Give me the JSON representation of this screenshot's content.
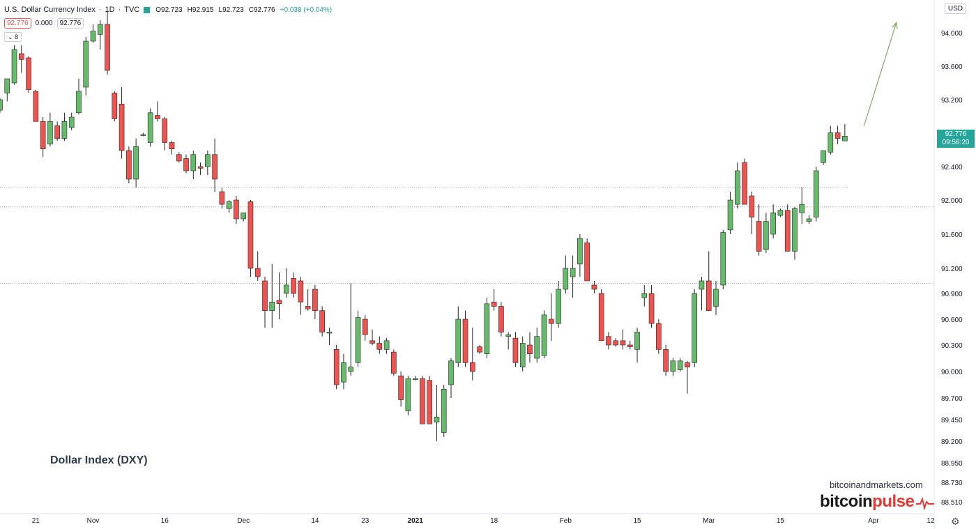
{
  "header": {
    "title": "U.S. Dollar Currency Index",
    "interval": "1D",
    "exchange": "TVC",
    "open": "O92.723",
    "high": "H92.915",
    "low": "L92.723",
    "close": "C92.776",
    "change": "+0.038 (+0.04%)"
  },
  "price_boxes": {
    "bid": "92.776",
    "spread": "0.000",
    "ask": "92.776"
  },
  "indicator_toggle": "8",
  "currency": "USD",
  "last_price": {
    "value": "92.776",
    "countdown": "09:56:20"
  },
  "annotation_label": "Dollar Index (DXY)",
  "watermark": {
    "site": "bitcoinandmarkets.com",
    "brand_part1": "bitcoin",
    "brand_part2": "pulse"
  },
  "colors": {
    "up": "#66bb6a",
    "down": "#ef5350",
    "arrow": "#7caa5e",
    "last_badge": "#26a69a"
  },
  "icons": [
    "settings-gear-icon",
    "pulse-wave-icon",
    "flag-icon"
  ],
  "chart_data": {
    "type": "candlestick",
    "y_ticks": [
      94.0,
      93.6,
      93.2,
      92.8,
      92.4,
      92.0,
      91.6,
      91.2,
      90.9,
      90.6,
      90.3,
      90.0,
      89.7,
      89.45,
      89.2,
      88.95,
      88.73,
      88.51
    ],
    "y_tick_labels": [
      "94.000",
      "93.600",
      "93.200",
      "92.800",
      "92.400",
      "92.000",
      "91.600",
      "91.200",
      "90.900",
      "90.600",
      "90.300",
      "90.000",
      "89.700",
      "89.450",
      "89.200",
      "88.950",
      "88.730",
      "88.510"
    ],
    "x_tick_labels": [
      {
        "label": "21",
        "index": 5
      },
      {
        "label": "Nov",
        "index": 13
      },
      {
        "label": "16",
        "index": 23
      },
      {
        "label": "Dec",
        "index": 34
      },
      {
        "label": "14",
        "index": 44
      },
      {
        "label": "23",
        "index": 51
      },
      {
        "label": "2021",
        "index": 58
      },
      {
        "label": "18",
        "index": 69
      },
      {
        "label": "Feb",
        "index": 79
      },
      {
        "label": "15",
        "index": 89
      },
      {
        "label": "Mar",
        "index": 99
      },
      {
        "label": "15",
        "index": 109
      },
      {
        "label": "Apr",
        "index": 122
      },
      {
        "label": "12",
        "index": 130
      }
    ],
    "horizontal_levels": [
      92.15,
      91.92,
      91.02
    ],
    "projection_arrow": {
      "from_index": 120,
      "from_value": 92.9,
      "to_index": 125,
      "to_value": 94.12
    },
    "candles": [
      {
        "o": 93.08,
        "h": 93.22,
        "l": 93.05,
        "c": 93.2
      },
      {
        "o": 93.28,
        "h": 93.4,
        "l": 93.18,
        "c": 93.45
      },
      {
        "o": 93.4,
        "h": 93.85,
        "l": 93.38,
        "c": 93.8
      },
      {
        "o": 93.75,
        "h": 93.85,
        "l": 93.52,
        "c": 93.68
      },
      {
        "o": 93.7,
        "h": 93.72,
        "l": 93.28,
        "c": 93.32
      },
      {
        "o": 93.3,
        "h": 93.32,
        "l": 92.95,
        "c": 92.95
      },
      {
        "o": 92.95,
        "h": 93.0,
        "l": 92.52,
        "c": 92.62
      },
      {
        "o": 92.68,
        "h": 93.05,
        "l": 92.65,
        "c": 92.95
      },
      {
        "o": 92.9,
        "h": 92.95,
        "l": 92.72,
        "c": 92.75
      },
      {
        "o": 92.75,
        "h": 93.05,
        "l": 92.72,
        "c": 92.95
      },
      {
        "o": 92.88,
        "h": 93.05,
        "l": 92.85,
        "c": 93.0
      },
      {
        "o": 93.05,
        "h": 93.45,
        "l": 93.03,
        "c": 93.3
      },
      {
        "o": 93.35,
        "h": 93.95,
        "l": 93.25,
        "c": 93.9
      },
      {
        "o": 93.9,
        "h": 94.1,
        "l": 93.88,
        "c": 94.02
      },
      {
        "o": 93.98,
        "h": 94.15,
        "l": 93.8,
        "c": 94.1
      },
      {
        "o": 94.1,
        "h": 94.25,
        "l": 93.5,
        "c": 93.55
      },
      {
        "o": 93.28,
        "h": 93.3,
        "l": 92.95,
        "c": 92.98
      },
      {
        "o": 93.15,
        "h": 93.35,
        "l": 92.5,
        "c": 92.6
      },
      {
        "o": 92.6,
        "h": 92.65,
        "l": 92.2,
        "c": 92.25
      },
      {
        "o": 92.25,
        "h": 92.75,
        "l": 92.15,
        "c": 92.65
      },
      {
        "o": 92.8,
        "h": 92.82,
        "l": 92.78,
        "c": 92.8
      },
      {
        "o": 92.7,
        "h": 93.1,
        "l": 92.65,
        "c": 93.05
      },
      {
        "o": 93.02,
        "h": 93.18,
        "l": 92.95,
        "c": 92.98
      },
      {
        "o": 92.98,
        "h": 93.0,
        "l": 92.6,
        "c": 92.7
      },
      {
        "o": 92.7,
        "h": 92.72,
        "l": 92.55,
        "c": 92.62
      },
      {
        "o": 92.55,
        "h": 92.58,
        "l": 92.45,
        "c": 92.47
      },
      {
        "o": 92.5,
        "h": 92.55,
        "l": 92.32,
        "c": 92.35
      },
      {
        "o": 92.35,
        "h": 92.6,
        "l": 92.25,
        "c": 92.55
      },
      {
        "o": 92.4,
        "h": 92.45,
        "l": 92.3,
        "c": 92.38
      },
      {
        "o": 92.4,
        "h": 92.6,
        "l": 92.3,
        "c": 92.55
      },
      {
        "o": 92.55,
        "h": 92.75,
        "l": 92.1,
        "c": 92.25
      },
      {
        "o": 92.1,
        "h": 92.15,
        "l": 91.9,
        "c": 91.95
      },
      {
        "o": 91.9,
        "h": 92.0,
        "l": 91.85,
        "c": 91.98
      },
      {
        "o": 92.0,
        "h": 92.05,
        "l": 91.72,
        "c": 91.78
      },
      {
        "o": 91.78,
        "h": 91.85,
        "l": 91.75,
        "c": 91.85
      },
      {
        "o": 91.98,
        "h": 92.0,
        "l": 91.1,
        "c": 91.2
      },
      {
        "o": 91.2,
        "h": 91.4,
        "l": 91.05,
        "c": 91.1
      },
      {
        "o": 91.05,
        "h": 91.1,
        "l": 90.5,
        "c": 90.7
      },
      {
        "o": 90.7,
        "h": 91.25,
        "l": 90.5,
        "c": 90.8
      },
      {
        "o": 90.82,
        "h": 91.15,
        "l": 90.6,
        "c": 90.78
      },
      {
        "o": 90.9,
        "h": 91.2,
        "l": 90.85,
        "c": 91.0
      },
      {
        "o": 91.08,
        "h": 91.15,
        "l": 90.85,
        "c": 90.9
      },
      {
        "o": 91.05,
        "h": 91.1,
        "l": 90.65,
        "c": 90.8
      },
      {
        "o": 90.75,
        "h": 90.95,
        "l": 90.7,
        "c": 90.72
      },
      {
        "o": 90.95,
        "h": 91.0,
        "l": 90.6,
        "c": 90.7
      },
      {
        "o": 90.7,
        "h": 90.75,
        "l": 90.4,
        "c": 90.45
      },
      {
        "o": 90.45,
        "h": 90.5,
        "l": 90.3,
        "c": 90.45
      },
      {
        "o": 90.25,
        "h": 90.3,
        "l": 89.8,
        "c": 89.85
      },
      {
        "o": 89.88,
        "h": 90.2,
        "l": 89.8,
        "c": 90.1
      },
      {
        "o": 90.0,
        "h": 91.02,
        "l": 89.95,
        "c": 90.05
      },
      {
        "o": 90.1,
        "h": 90.7,
        "l": 90.05,
        "c": 90.62
      },
      {
        "o": 90.6,
        "h": 90.65,
        "l": 90.35,
        "c": 90.42
      },
      {
        "o": 90.35,
        "h": 90.48,
        "l": 90.3,
        "c": 90.32
      },
      {
        "o": 90.32,
        "h": 90.4,
        "l": 90.2,
        "c": 90.25
      },
      {
        "o": 90.25,
        "h": 90.38,
        "l": 90.2,
        "c": 90.35
      },
      {
        "o": 90.22,
        "h": 90.25,
        "l": 89.95,
        "c": 89.98
      },
      {
        "o": 89.95,
        "h": 90.0,
        "l": 89.6,
        "c": 89.68
      },
      {
        "o": 89.55,
        "h": 89.95,
        "l": 89.5,
        "c": 89.92
      },
      {
        "o": 89.92,
        "h": 89.95,
        "l": 89.9,
        "c": 89.92
      },
      {
        "o": 89.92,
        "h": 89.95,
        "l": 89.4,
        "c": 89.4
      },
      {
        "o": 89.9,
        "h": 89.95,
        "l": 89.4,
        "c": 89.4
      },
      {
        "o": 89.42,
        "h": 89.85,
        "l": 89.2,
        "c": 89.48
      },
      {
        "o": 89.3,
        "h": 89.85,
        "l": 89.25,
        "c": 89.8
      },
      {
        "o": 89.85,
        "h": 90.15,
        "l": 89.7,
        "c": 90.12
      },
      {
        "o": 90.1,
        "h": 90.75,
        "l": 90.05,
        "c": 90.6
      },
      {
        "o": 90.6,
        "h": 90.7,
        "l": 90.05,
        "c": 90.1
      },
      {
        "o": 90.1,
        "h": 90.5,
        "l": 89.9,
        "c": 90.0
      },
      {
        "o": 90.28,
        "h": 90.3,
        "l": 90.2,
        "c": 90.22
      },
      {
        "o": 90.2,
        "h": 90.85,
        "l": 90.15,
        "c": 90.78
      },
      {
        "o": 90.8,
        "h": 90.95,
        "l": 90.7,
        "c": 90.75
      },
      {
        "o": 90.75,
        "h": 90.8,
        "l": 90.4,
        "c": 90.45
      },
      {
        "o": 90.4,
        "h": 90.45,
        "l": 90.25,
        "c": 90.42
      },
      {
        "o": 90.38,
        "h": 90.45,
        "l": 90.05,
        "c": 90.1
      },
      {
        "o": 90.05,
        "h": 90.4,
        "l": 90.0,
        "c": 90.32
      },
      {
        "o": 90.3,
        "h": 90.45,
        "l": 90.1,
        "c": 90.2
      },
      {
        "o": 90.15,
        "h": 90.5,
        "l": 90.1,
        "c": 90.4
      },
      {
        "o": 90.18,
        "h": 90.7,
        "l": 90.15,
        "c": 90.65
      },
      {
        "o": 90.6,
        "h": 90.9,
        "l": 90.35,
        "c": 90.55
      },
      {
        "o": 90.55,
        "h": 91.05,
        "l": 90.5,
        "c": 90.95
      },
      {
        "o": 90.95,
        "h": 91.35,
        "l": 90.9,
        "c": 91.2
      },
      {
        "o": 91.1,
        "h": 91.35,
        "l": 90.85,
        "c": 91.2
      },
      {
        "o": 91.25,
        "h": 91.6,
        "l": 91.1,
        "c": 91.55
      },
      {
        "o": 91.5,
        "h": 91.55,
        "l": 91.05,
        "c": 91.05
      },
      {
        "o": 91.0,
        "h": 91.05,
        "l": 90.9,
        "c": 90.95
      },
      {
        "o": 90.9,
        "h": 90.95,
        "l": 90.35,
        "c": 90.35
      },
      {
        "o": 90.4,
        "h": 90.45,
        "l": 90.25,
        "c": 90.3
      },
      {
        "o": 90.35,
        "h": 90.38,
        "l": 90.28,
        "c": 90.3
      },
      {
        "o": 90.35,
        "h": 90.48,
        "l": 90.25,
        "c": 90.3
      },
      {
        "o": 90.3,
        "h": 90.35,
        "l": 90.25,
        "c": 90.28
      },
      {
        "o": 90.25,
        "h": 90.5,
        "l": 90.1,
        "c": 90.45
      },
      {
        "o": 90.85,
        "h": 91.0,
        "l": 90.75,
        "c": 90.9
      },
      {
        "o": 90.9,
        "h": 91.0,
        "l": 90.5,
        "c": 90.55
      },
      {
        "o": 90.55,
        "h": 90.6,
        "l": 90.2,
        "c": 90.25
      },
      {
        "o": 90.25,
        "h": 90.3,
        "l": 89.95,
        "c": 90.0
      },
      {
        "o": 90.0,
        "h": 90.15,
        "l": 89.95,
        "c": 90.12
      },
      {
        "o": 90.02,
        "h": 90.15,
        "l": 90.0,
        "c": 90.12
      },
      {
        "o": 90.1,
        "h": 90.12,
        "l": 89.75,
        "c": 90.05
      },
      {
        "o": 90.1,
        "h": 90.95,
        "l": 90.05,
        "c": 90.9
      },
      {
        "o": 90.95,
        "h": 91.1,
        "l": 90.7,
        "c": 91.05
      },
      {
        "o": 91.05,
        "h": 91.4,
        "l": 90.75,
        "c": 90.7
      },
      {
        "o": 90.75,
        "h": 91.05,
        "l": 90.65,
        "c": 90.95
      },
      {
        "o": 91.0,
        "h": 91.65,
        "l": 90.95,
        "c": 91.62
      },
      {
        "o": 91.65,
        "h": 92.1,
        "l": 91.6,
        "c": 92.0
      },
      {
        "o": 91.95,
        "h": 92.45,
        "l": 91.9,
        "c": 92.35
      },
      {
        "o": 92.45,
        "h": 92.5,
        "l": 91.95,
        "c": 91.95
      },
      {
        "o": 92.05,
        "h": 92.1,
        "l": 91.6,
        "c": 91.8
      },
      {
        "o": 91.75,
        "h": 91.95,
        "l": 91.35,
        "c": 91.4
      },
      {
        "o": 91.42,
        "h": 91.85,
        "l": 91.38,
        "c": 91.75
      },
      {
        "o": 91.6,
        "h": 91.95,
        "l": 91.55,
        "c": 91.85
      },
      {
        "o": 91.82,
        "h": 91.9,
        "l": 91.8,
        "c": 91.88
      },
      {
        "o": 91.88,
        "h": 91.95,
        "l": 91.4,
        "c": 91.4
      },
      {
        "o": 91.4,
        "h": 91.92,
        "l": 91.3,
        "c": 91.9
      },
      {
        "o": 91.85,
        "h": 92.15,
        "l": 91.72,
        "c": 91.95
      },
      {
        "o": 91.75,
        "h": 91.82,
        "l": 91.72,
        "c": 91.78
      },
      {
        "o": 91.8,
        "h": 92.4,
        "l": 91.75,
        "c": 92.35
      },
      {
        "o": 92.45,
        "h": 92.6,
        "l": 92.42,
        "c": 92.6
      },
      {
        "o": 92.58,
        "h": 92.9,
        "l": 92.55,
        "c": 92.82
      },
      {
        "o": 92.82,
        "h": 92.9,
        "l": 92.68,
        "c": 92.75
      },
      {
        "o": 92.72,
        "h": 92.92,
        "l": 92.72,
        "c": 92.78
      }
    ]
  }
}
